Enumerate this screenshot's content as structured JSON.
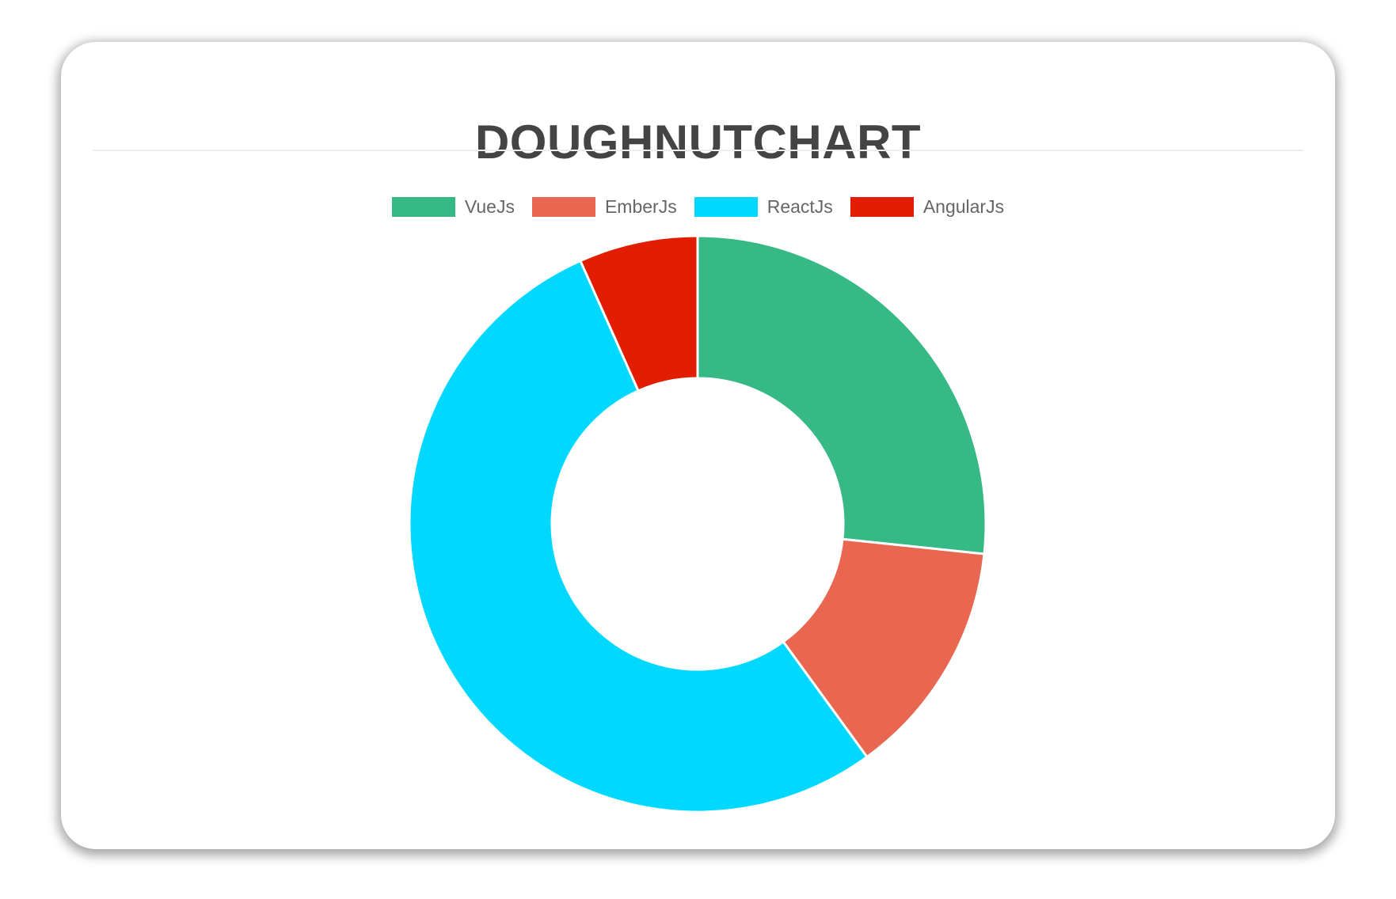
{
  "chart_data": {
    "type": "doughnut",
    "title": "DOUGHNUTCHART",
    "categories": [
      "VueJs",
      "EmberJs",
      "ReactJs",
      "AngularJs"
    ],
    "values": [
      40,
      20,
      80,
      10
    ],
    "colors": [
      "#36b985",
      "#e96650",
      "#00d8ff",
      "#e21d01"
    ],
    "legend_position": "top"
  }
}
